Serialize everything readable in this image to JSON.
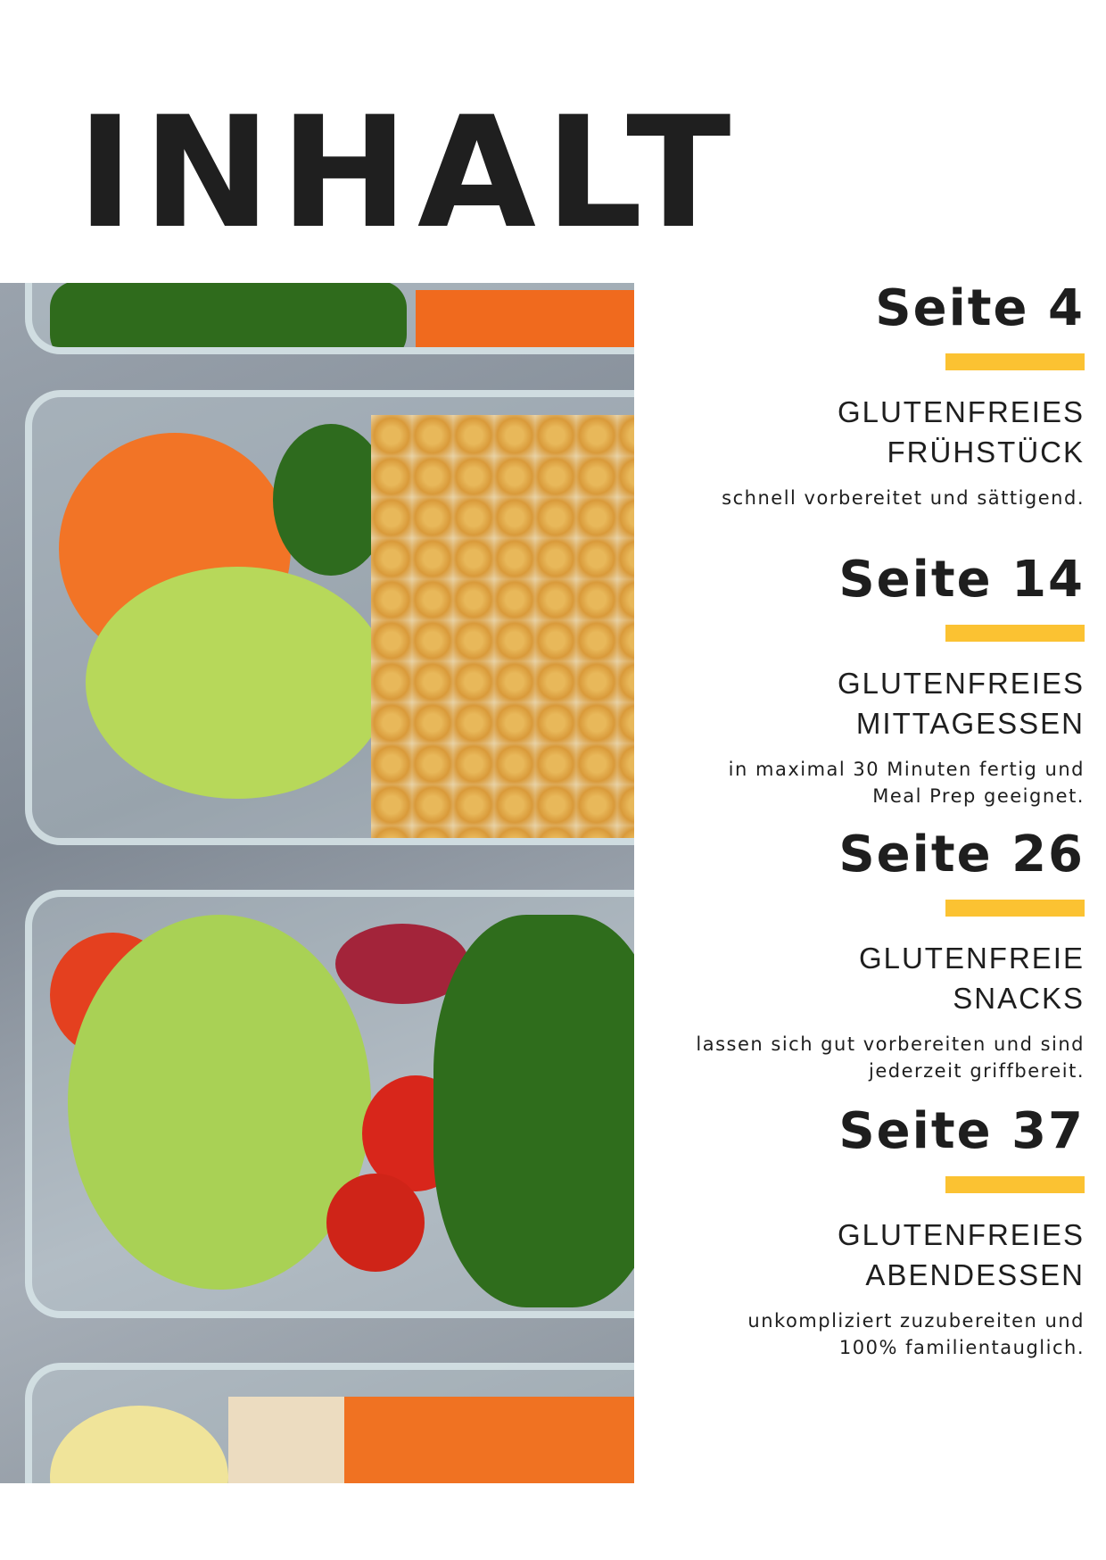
{
  "title": "INHALT",
  "accent_color": "#fbc232",
  "sections": [
    {
      "page": "Seite 4",
      "heading1": "GLUTENFREIES",
      "heading2": "FRÜHSTÜCK",
      "desc1": "schnell vorbereitet und sättigend.",
      "desc2": ""
    },
    {
      "page": "Seite 14",
      "heading1": "GLUTENFREIES",
      "heading2": "MITTAGESSEN",
      "desc1": "in maximal 30 Minuten fertig und",
      "desc2": "Meal Prep geeignet."
    },
    {
      "page": "Seite 26",
      "heading1": "GLUTENFREIE",
      "heading2": "SNACKS",
      "desc1": "lassen sich gut vorbereiten und sind",
      "desc2": "jederzeit griffbereit."
    },
    {
      "page": "Seite 37",
      "heading1": "GLUTENFREIES",
      "heading2": "ABENDESSEN",
      "desc1": "unkompliziert zuzubereiten und",
      "desc2": "100% familientauglich."
    }
  ]
}
